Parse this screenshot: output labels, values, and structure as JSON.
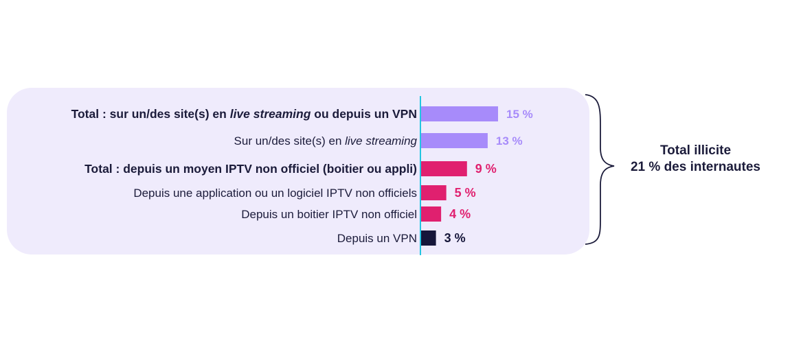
{
  "chart_data": {
    "type": "bar",
    "orientation": "horizontal",
    "unit": "%",
    "categories": [
      {
        "parts": [
          {
            "text": "Total : sur un/des site(s) en ",
            "italic": false
          },
          {
            "text": "live streaming",
            "italic": true
          },
          {
            "text": " ou depuis un VPN",
            "italic": false
          }
        ],
        "bold": true
      },
      {
        "parts": [
          {
            "text": "Sur un/des site(s) en ",
            "italic": false
          },
          {
            "text": "live streaming",
            "italic": true
          }
        ],
        "bold": false
      },
      {
        "parts": [
          {
            "text": "Total : depuis un moyen IPTV non officiel (boitier ou appli)",
            "italic": false
          }
        ],
        "bold": true
      },
      {
        "parts": [
          {
            "text": "Depuis une application ou un logiciel IPTV non officiels",
            "italic": false
          }
        ],
        "bold": false
      },
      {
        "parts": [
          {
            "text": "Depuis un boitier IPTV non officiel",
            "italic": false
          }
        ],
        "bold": false
      },
      {
        "parts": [
          {
            "text": "Depuis un VPN",
            "italic": false
          }
        ],
        "bold": false
      }
    ],
    "values": [
      15,
      13,
      9,
      5,
      4,
      3
    ],
    "value_labels": [
      "15 %",
      "13 %",
      "9 %",
      "5 %",
      "4 %",
      "3 %"
    ],
    "colors": [
      "#a78bfa",
      "#a78bfa",
      "#e0206f",
      "#e0206f",
      "#e0206f",
      "#16163a"
    ],
    "label_colors": [
      "#a78bfa",
      "#a78bfa",
      "#e0206f",
      "#e0206f",
      "#e0206f",
      "#16163a"
    ],
    "axis_color": "#22c6e0",
    "xlim": [
      0,
      15
    ]
  },
  "annotation": {
    "line1": "Total illicite",
    "line2": "21 % des internautes"
  }
}
